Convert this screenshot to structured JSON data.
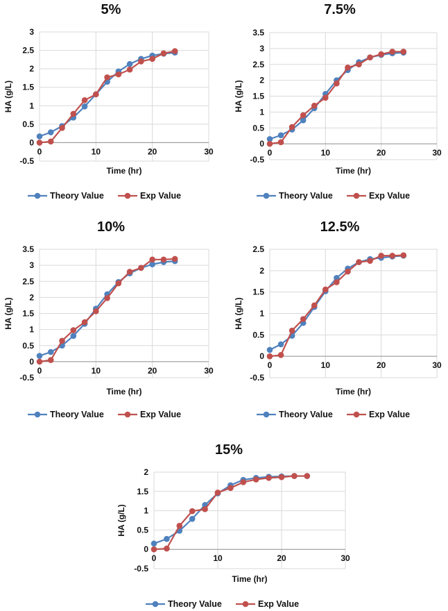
{
  "colors": {
    "theory": "#4f81bd",
    "exp": "#c0504d",
    "grid": "#d9d9d9",
    "axis": "#8c8c8c"
  },
  "chart_data": [
    {
      "type": "line",
      "title": "5%",
      "xlabel": "Time (hr)",
      "ylabel": "HA (g/L)",
      "xlim": [
        0,
        30
      ],
      "ylim": [
        -0.5,
        3
      ],
      "xticks": [
        "0",
        "10",
        "20",
        "30"
      ],
      "yticks": [
        "-0.5",
        "0",
        "0.5",
        "1",
        "1.5",
        "2",
        "2.5",
        "3"
      ],
      "x": [
        0,
        2,
        4,
        6,
        8,
        10,
        12,
        14,
        16,
        18,
        20,
        22,
        24
      ],
      "legend": "bottom",
      "series": [
        {
          "name": "Theory Value",
          "values": [
            0.17,
            0.28,
            0.45,
            0.68,
            0.98,
            1.31,
            1.65,
            1.93,
            2.13,
            2.27,
            2.36,
            2.41,
            2.44
          ]
        },
        {
          "name": "Exp Value",
          "values": [
            0,
            0.03,
            0.4,
            0.78,
            1.15,
            1.31,
            1.77,
            1.85,
            1.98,
            2.2,
            2.27,
            2.42,
            2.48
          ]
        }
      ]
    },
    {
      "type": "line",
      "title": "7.5%",
      "xlabel": "Time (hr)",
      "ylabel": "HA (g/L)",
      "xlim": [
        0,
        30
      ],
      "ylim": [
        -0.5,
        3.5
      ],
      "xticks": [
        "0",
        "10",
        "20",
        "30"
      ],
      "yticks": [
        "-0.5",
        "0",
        "0.5",
        "1",
        "1.5",
        "2",
        "2.5",
        "3",
        "3.5"
      ],
      "x": [
        0,
        2,
        4,
        6,
        8,
        10,
        12,
        14,
        16,
        18,
        20,
        22,
        24
      ],
      "legend": "bottom",
      "series": [
        {
          "name": "Theory Value",
          "values": [
            0.15,
            0.27,
            0.45,
            0.74,
            1.12,
            1.57,
            2.0,
            2.32,
            2.57,
            2.72,
            2.8,
            2.85,
            2.87
          ]
        },
        {
          "name": "Exp Value",
          "values": [
            0,
            0.05,
            0.53,
            0.9,
            1.2,
            1.45,
            1.9,
            2.4,
            2.5,
            2.72,
            2.82,
            2.9,
            2.9
          ]
        }
      ]
    },
    {
      "type": "line",
      "title": "10%",
      "xlabel": "Time (hr)",
      "ylabel": "HA (g/L)",
      "xlim": [
        0,
        30
      ],
      "ylim": [
        -0.5,
        3.5
      ],
      "xticks": [
        "0",
        "10",
        "20",
        "30"
      ],
      "yticks": [
        "-0.5",
        "0",
        "0.5",
        "1",
        "1.5",
        "2",
        "2.5",
        "3",
        "3.5"
      ],
      "x": [
        0,
        2,
        4,
        6,
        8,
        10,
        12,
        14,
        16,
        18,
        20,
        22,
        24
      ],
      "legend": "bottom",
      "series": [
        {
          "name": "Theory Value",
          "values": [
            0.18,
            0.3,
            0.5,
            0.8,
            1.18,
            1.65,
            2.1,
            2.48,
            2.75,
            2.92,
            3.03,
            3.1,
            3.13
          ]
        },
        {
          "name": "Exp Value",
          "values": [
            0,
            0.05,
            0.65,
            0.98,
            1.23,
            1.57,
            1.98,
            2.44,
            2.8,
            2.92,
            3.18,
            3.18,
            3.2
          ]
        }
      ]
    },
    {
      "type": "line",
      "title": "12.5%",
      "xlabel": "Time (hr)",
      "ylabel": "HA (g/L)",
      "xlim": [
        0,
        30
      ],
      "ylim": [
        -0.5,
        2.5
      ],
      "xticks": [
        "0",
        "10",
        "20",
        "30"
      ],
      "yticks": [
        "-0.5",
        "0",
        "0.5",
        "1",
        "1.5",
        "2",
        "2.5"
      ],
      "x": [
        0,
        2,
        4,
        6,
        8,
        10,
        12,
        14,
        16,
        18,
        20,
        22,
        24
      ],
      "legend": "bottom",
      "series": [
        {
          "name": "Theory Value",
          "values": [
            0.15,
            0.28,
            0.48,
            0.78,
            1.15,
            1.52,
            1.83,
            2.05,
            2.2,
            2.27,
            2.3,
            2.33,
            2.35
          ]
        },
        {
          "name": "Exp Value",
          "values": [
            0,
            0.03,
            0.6,
            0.87,
            1.19,
            1.56,
            1.73,
            1.98,
            2.2,
            2.23,
            2.35,
            2.35,
            2.36
          ]
        }
      ]
    },
    {
      "type": "line",
      "title": "15%",
      "xlabel": "Time (hr)",
      "ylabel": "HA (g/L)",
      "xlim": [
        0,
        30
      ],
      "ylim": [
        -0.5,
        2
      ],
      "xticks": [
        "0",
        "10",
        "20",
        "30"
      ],
      "yticks": [
        "-0.5",
        "0",
        "0.5",
        "1",
        "1.5",
        "2"
      ],
      "x": [
        0,
        2,
        4,
        6,
        8,
        10,
        12,
        14,
        16,
        18,
        20,
        22,
        24
      ],
      "legend": "bottom",
      "series": [
        {
          "name": "Theory Value",
          "values": [
            0.15,
            0.27,
            0.48,
            0.79,
            1.15,
            1.45,
            1.66,
            1.8,
            1.85,
            1.88,
            1.89,
            1.9,
            1.9
          ]
        },
        {
          "name": "Exp Value",
          "values": [
            0,
            0.02,
            0.61,
            0.99,
            1.04,
            1.47,
            1.59,
            1.74,
            1.81,
            1.85,
            1.87,
            1.9,
            1.9
          ]
        }
      ]
    }
  ]
}
